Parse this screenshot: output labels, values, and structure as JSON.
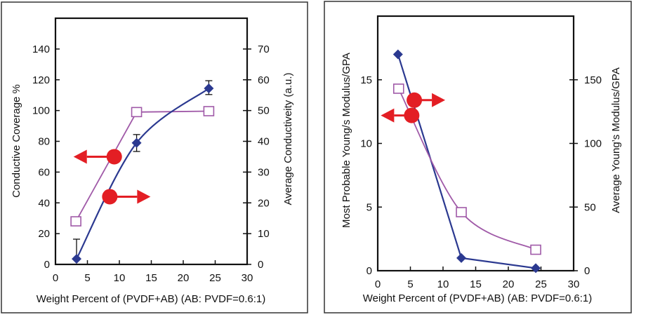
{
  "colors": {
    "diamond_series": "#2b3990",
    "square_series": "#a05aa8",
    "arrow": "#e31e24",
    "axis": "#111111"
  },
  "chart_data": [
    {
      "type": "line",
      "xlabel": "Weight Percent of (PVDF+AB) (AB: PVDF=0.6:1)",
      "ylabel": "Conductive Coverage %",
      "y2label": "Average Conductiveity (a.u.)",
      "xlim": [
        0,
        30
      ],
      "ylim": [
        0,
        160
      ],
      "y2lim": [
        0,
        80
      ],
      "xticks": [
        "0",
        "5",
        "10",
        "15",
        "20",
        "25",
        "30"
      ],
      "yticks": [
        "0",
        "20",
        "40",
        "60",
        "80",
        "100",
        "120",
        "140"
      ],
      "y2ticks": [
        "0",
        "10",
        "20",
        "30",
        "40",
        "50",
        "60",
        "70"
      ],
      "grid": false,
      "series": [
        {
          "marker": "open-square",
          "axis": "left",
          "smooth": false,
          "color": "#a05aa8",
          "x": [
            3.2,
            12.7,
            24.0
          ],
          "y": [
            28,
            99,
            99.6
          ]
        },
        {
          "marker": "filled-diamond",
          "axis": "right",
          "smooth": true,
          "color": "#2b3990",
          "x": [
            3.3,
            12.7,
            24.0
          ],
          "y": [
            1.8,
            39.5,
            57.2
          ],
          "error_low": [
            1.8,
            36.7,
            55.2
          ],
          "error_high": [
            8.2,
            42.2,
            59.7
          ]
        }
      ],
      "annotations": [
        {
          "type": "arrow-marker",
          "direction": "left",
          "meaning": "left axis",
          "x": 9.2,
          "y": 70
        },
        {
          "type": "arrow-marker",
          "direction": "right",
          "meaning": "right axis",
          "x": 8.5,
          "y": 44
        }
      ]
    },
    {
      "type": "line",
      "xlabel": "Weight Percent of (PVDF+AB) (AB: PVDF=0.6:1)",
      "ylabel": "Most Probable Young/s Modulus/GPA",
      "y2label": "Average Young’s Modulus/GPA",
      "xlim": [
        0,
        30
      ],
      "ylim": [
        0,
        20
      ],
      "y2lim": [
        0,
        200
      ],
      "xticks": [
        "0",
        "5",
        "10",
        "15",
        "20",
        "25",
        "30"
      ],
      "yticks": [
        "0",
        "5",
        "10",
        "15"
      ],
      "y2ticks": [
        "0",
        "50",
        "100",
        "150"
      ],
      "grid": false,
      "series": [
        {
          "marker": "filled-diamond",
          "axis": "left",
          "smooth": false,
          "color": "#2b3990",
          "x": [
            3.1,
            12.8,
            24.2
          ],
          "y": [
            17.0,
            1.0,
            0.2
          ]
        },
        {
          "marker": "open-square",
          "axis": "right",
          "smooth": true,
          "color": "#a05aa8",
          "x": [
            3.2,
            12.8,
            24.2
          ],
          "y": [
            143,
            46,
            16.5
          ]
        }
      ],
      "annotations": [
        {
          "type": "arrow-marker",
          "direction": "right",
          "meaning": "right axis",
          "x": 5.6,
          "y": 13.4
        },
        {
          "type": "arrow-marker",
          "direction": "left",
          "meaning": "left axis",
          "x": 5.2,
          "y": 12.2
        }
      ]
    }
  ]
}
